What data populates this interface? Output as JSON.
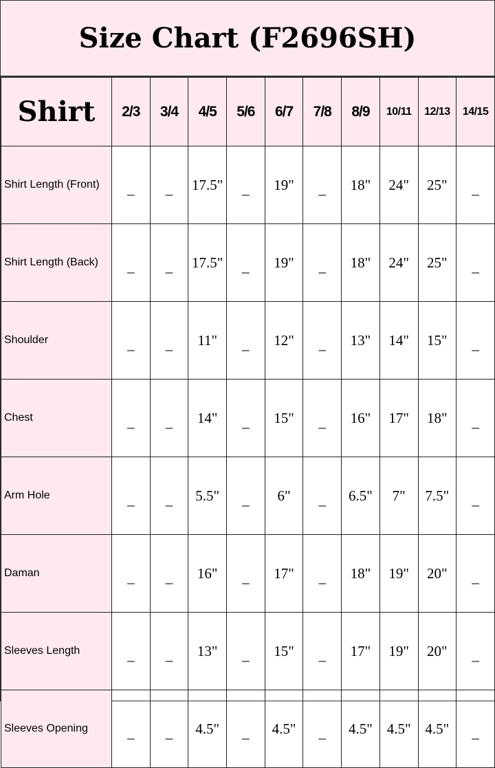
{
  "title": "Size Chart (F2696SH)",
  "table": {
    "corner_label": "Shirt",
    "sizes": [
      "2/3",
      "3/4",
      "4/5",
      "5/6",
      "6/7",
      "7/8",
      "8/9",
      "10/11",
      "12/13",
      "14/15"
    ],
    "rows": [
      {
        "label": "Shirt Length (Front)",
        "values": [
          "_",
          "_",
          "17.5\"",
          "_",
          "19\"",
          "_",
          "18\"",
          "24\"",
          "25\"",
          "_"
        ]
      },
      {
        "label": "Shirt Length (Back)",
        "values": [
          "_",
          "_",
          "17.5\"",
          "_",
          "19\"",
          "_",
          "18\"",
          "24\"",
          "25\"",
          "_"
        ]
      },
      {
        "label": "Shoulder",
        "values": [
          "_",
          "_",
          "11\"",
          "_",
          "12\"",
          "_",
          "13\"",
          "14\"",
          "15\"",
          "_"
        ]
      },
      {
        "label": "Chest",
        "values": [
          "_",
          "_",
          "14\"",
          "_",
          "15\"",
          "_",
          "16\"",
          "17\"",
          "18\"",
          "_"
        ]
      },
      {
        "label": "Arm Hole",
        "values": [
          "_",
          "_",
          "5.5\"",
          "_",
          "6\"",
          "_",
          "6.5\"",
          "7\"",
          "7.5\"",
          "_"
        ]
      },
      {
        "label": "Daman",
        "values": [
          "_",
          "_",
          "16\"",
          "_",
          "17\"",
          "_",
          "18\"",
          "19\"",
          "20\"",
          "_"
        ]
      },
      {
        "label": "Sleeves Length",
        "values": [
          "_",
          "_",
          "13\"",
          "_",
          "15\"",
          "_",
          "17\"",
          "19\"",
          "20\"",
          "_"
        ]
      },
      {
        "label": "Sleeves Opening",
        "values": [
          "_",
          "_",
          "4.5\"",
          "_",
          "4.5\"",
          "_",
          "4.5\"",
          "4.5\"",
          "4.5\"",
          "_"
        ]
      }
    ]
  },
  "colors": {
    "header_bg": "#fde9ee",
    "border": "#222222"
  }
}
